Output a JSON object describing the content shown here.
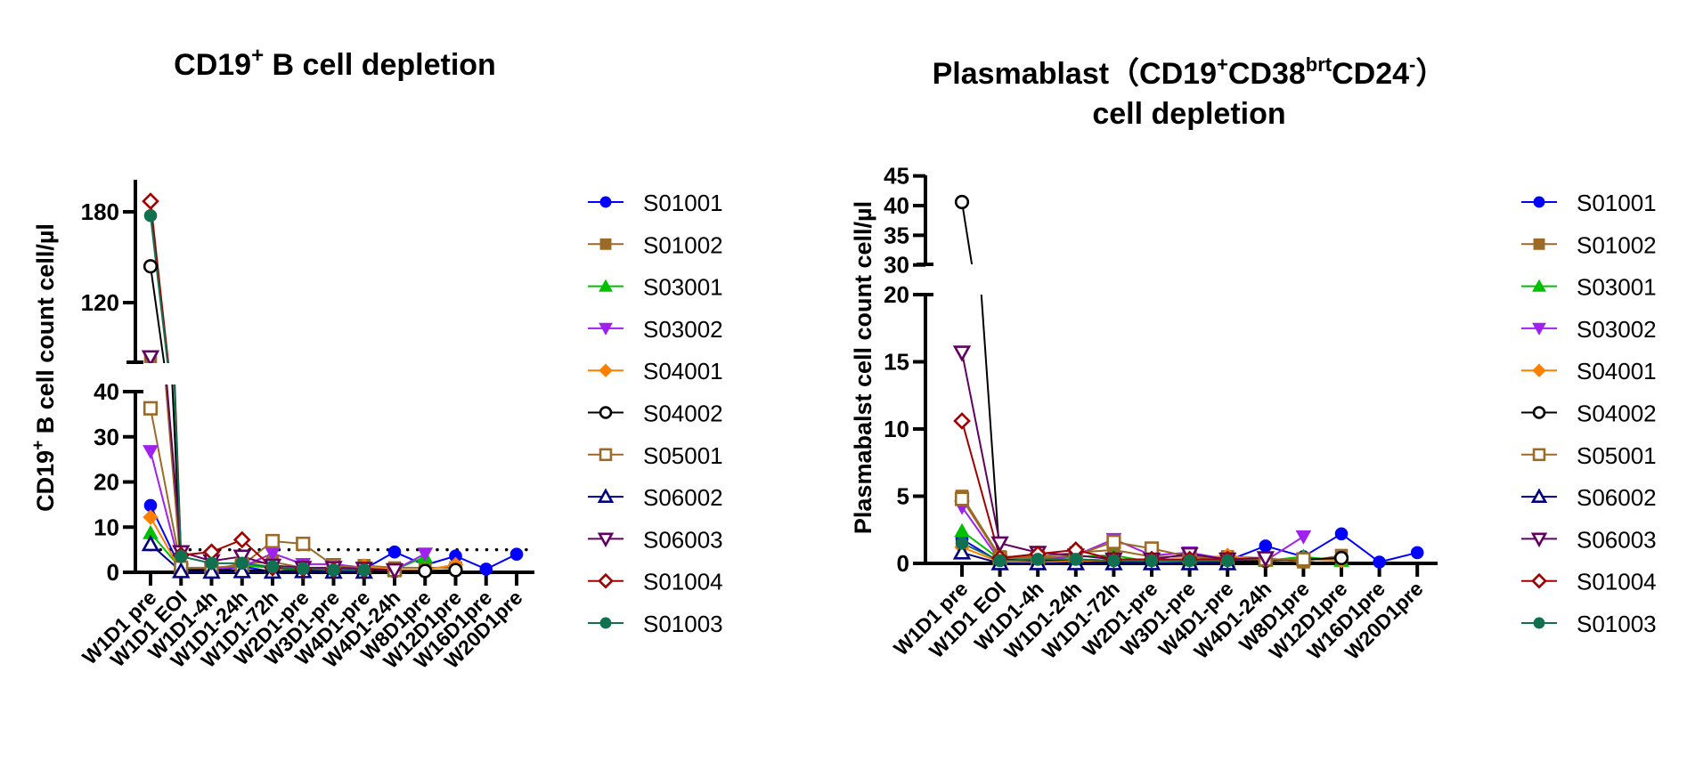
{
  "chart_data": [
    {
      "type": "line",
      "title": {
        "main": "CD19",
        "sup": "+",
        "rest": " B cell depletion"
      },
      "ylabel": {
        "main": "CD19",
        "sup": "+",
        "rest": " B cell count cell/µl"
      },
      "xlabel": "",
      "y_axis_break": true,
      "ylim_lower": [
        0,
        40
      ],
      "ylim_upper": [
        80,
        200
      ],
      "yticks_lower": [
        0,
        10,
        20,
        30,
        40
      ],
      "yticks_upper": [
        120,
        180
      ],
      "reference_line": {
        "y": 5,
        "style": "dotted"
      },
      "legend_position": "right",
      "categories": [
        "W1D1 pre",
        "W1D1 EOI",
        "W1D1-4h",
        "W1D1-24h",
        "W1D1-72h",
        "W2D1-pre",
        "W3D1-pre",
        "W4D1-pre",
        "W4D1-24h",
        "W8D1pre",
        "W12D1pre",
        "W16D1pre",
        "W20D1pre"
      ],
      "series": [
        {
          "name": "S01001",
          "color": "#0000ff",
          "marker": "circle-filled",
          "values": [
            14.8,
            0.7,
            0.3,
            1.3,
            0.1,
            0.7,
            0.0,
            0.7,
            4.5,
            1.6,
            3.6,
            0.7,
            4.0
          ]
        },
        {
          "name": "S01002",
          "color": "#9b6a26",
          "marker": "square-filled",
          "values": [
            82,
            0.5,
            0.5,
            2.0,
            2.3,
            1.0,
            0.5,
            1.5,
            1.0,
            1.0,
            1.0,
            null,
            null
          ]
        },
        {
          "name": "S03001",
          "color": "#00c000",
          "marker": "triangle-up-filled",
          "values": [
            8.7,
            0.8,
            0.5,
            1.5,
            1.0,
            0.3,
            0.5,
            0.8,
            0.6,
            3.4,
            null,
            null,
            null
          ]
        },
        {
          "name": "S03002",
          "color": "#a020f0",
          "marker": "triangle-down-filled",
          "values": [
            26.8,
            0.5,
            0.8,
            1.2,
            4.2,
            1.8,
            1.8,
            1.0,
            0.5,
            4.1,
            null,
            null,
            null
          ]
        },
        {
          "name": "S04001",
          "color": "#ff8000",
          "marker": "diamond-filled",
          "values": [
            12.2,
            0.3,
            0.2,
            0.2,
            0.3,
            0.2,
            0.3,
            1.4,
            0.5,
            0.5,
            1.7,
            null,
            null
          ]
        },
        {
          "name": "S04002",
          "color": "#000000",
          "marker": "circle-open",
          "values": [
            144,
            0.5,
            0.5,
            0.5,
            0.3,
            0.3,
            0.3,
            0.5,
            0.3,
            0.3,
            0.5,
            null,
            null
          ]
        },
        {
          "name": "S05001",
          "color": "#9b6a26",
          "marker": "square-open",
          "values": [
            36.3,
            1.0,
            1.0,
            1.5,
            6.9,
            6.3,
            1.5,
            0.8,
            0.5,
            null,
            null,
            null,
            null
          ]
        },
        {
          "name": "S06002",
          "color": "#000080",
          "marker": "triangle-up-open",
          "values": [
            6.2,
            0.2,
            0.1,
            0.2,
            0.1,
            0.2,
            0.1,
            0.1,
            null,
            null,
            null,
            null,
            null
          ]
        },
        {
          "name": "S06003",
          "color": "#600060",
          "marker": "triangle-down-open",
          "values": [
            84,
            4.5,
            2.5,
            3.5,
            1.5,
            1.0,
            1.0,
            0.8,
            0.5,
            null,
            null,
            null,
            null
          ]
        },
        {
          "name": "S01004",
          "color": "#a00000",
          "marker": "diamond-open",
          "values": [
            187,
            3.8,
            4.5,
            7.2,
            1.0,
            0.8,
            0.5,
            0.5,
            null,
            null,
            null,
            null,
            null
          ]
        },
        {
          "name": "S01003",
          "color": "#107050",
          "marker": "circle-filled",
          "values": [
            177.5,
            3.5,
            2.0,
            2.0,
            1.2,
            0.8,
            0.5,
            0.5,
            null,
            null,
            null,
            null,
            null
          ]
        }
      ]
    },
    {
      "type": "line",
      "title": {
        "l1a": "Plasmablast（CD19",
        "sup1": "+",
        "l1b": "CD38",
        "sup2": "brt",
        "l1c": "CD24",
        "sup3": "-",
        "l1d": "）",
        "line2": "cell depletion"
      },
      "ylabel": "Plasmabalst cell count cell/µl",
      "xlabel": "",
      "y_axis_break": true,
      "ylim_lower": [
        0,
        20
      ],
      "ylim_upper": [
        30,
        45
      ],
      "yticks_lower": [
        0,
        5,
        10,
        15,
        20
      ],
      "yticks_upper": [
        30,
        35,
        40,
        45
      ],
      "legend_position": "right",
      "categories": [
        "W1D1 pre",
        "W1D1 EOI",
        "W1D1-4h",
        "W1D1-24h",
        "W1D1-72h",
        "W2D1-pre",
        "W3D1-pre",
        "W4D1-pre",
        "W4D1-24h",
        "W8D1pre",
        "W12D1pre",
        "W16D1pre",
        "W20D1pre"
      ],
      "series": [
        {
          "name": "S01001",
          "color": "#0000ff",
          "marker": "circle-filled",
          "values": [
            1.8,
            0.1,
            0.0,
            0.2,
            0.0,
            0.2,
            0.1,
            0.2,
            1.3,
            0.5,
            2.2,
            0.1,
            0.8
          ]
        },
        {
          "name": "S01002",
          "color": "#9b6a26",
          "marker": "square-filled",
          "values": [
            5.0,
            0.5,
            0.5,
            0.8,
            1.0,
            0.5,
            0.5,
            0.5,
            0.4,
            0.1,
            0.6,
            null,
            null
          ]
        },
        {
          "name": "S03001",
          "color": "#00c000",
          "marker": "triangle-up-filled",
          "values": [
            2.4,
            0.3,
            0.3,
            0.5,
            0.6,
            0.1,
            0.2,
            0.2,
            0.2,
            0.5,
            0.2,
            null,
            null
          ]
        },
        {
          "name": "S03002",
          "color": "#a020f0",
          "marker": "triangle-down-filled",
          "values": [
            4.2,
            0.2,
            0.2,
            0.6,
            1.8,
            0.6,
            0.8,
            0.3,
            0.2,
            2.0,
            null,
            null,
            null
          ]
        },
        {
          "name": "S04001",
          "color": "#ff8000",
          "marker": "diamond-filled",
          "values": [
            1.2,
            0.1,
            0.1,
            0.2,
            0.2,
            0.2,
            0.2,
            0.6,
            0.2,
            0.3,
            0.2,
            null,
            null
          ]
        },
        {
          "name": "S04002",
          "color": "#000000",
          "marker": "circle-open",
          "values": [
            40.6,
            0.3,
            0.2,
            0.3,
            0.2,
            0.2,
            0.2,
            0.2,
            0.2,
            0.3,
            0.4,
            null,
            null
          ]
        },
        {
          "name": "S05001",
          "color": "#9b6a26",
          "marker": "square-open",
          "values": [
            4.8,
            0.4,
            0.4,
            0.6,
            1.6,
            1.1,
            0.5,
            0.3,
            0.3,
            0.3,
            null,
            null,
            null
          ]
        },
        {
          "name": "S06002",
          "color": "#000080",
          "marker": "triangle-up-open",
          "values": [
            0.8,
            0.0,
            0.0,
            0.0,
            0.0,
            0.0,
            0.0,
            0.0,
            null,
            null,
            null,
            null,
            null
          ]
        },
        {
          "name": "S06003",
          "color": "#600060",
          "marker": "triangle-down-open",
          "values": [
            15.7,
            1.5,
            0.8,
            0.6,
            0.3,
            0.3,
            0.7,
            0.3,
            0.4,
            null,
            null,
            null,
            null
          ]
        },
        {
          "name": "S01004",
          "color": "#a00000",
          "marker": "diamond-open",
          "values": [
            10.6,
            0.4,
            0.7,
            1.0,
            0.3,
            0.3,
            0.3,
            0.3,
            null,
            null,
            null,
            null,
            null
          ]
        },
        {
          "name": "S01003",
          "color": "#107050",
          "marker": "circle-filled",
          "values": [
            1.5,
            0.2,
            0.3,
            0.3,
            0.2,
            0.2,
            0.2,
            0.2,
            null,
            null,
            null,
            null,
            null
          ]
        }
      ]
    }
  ]
}
